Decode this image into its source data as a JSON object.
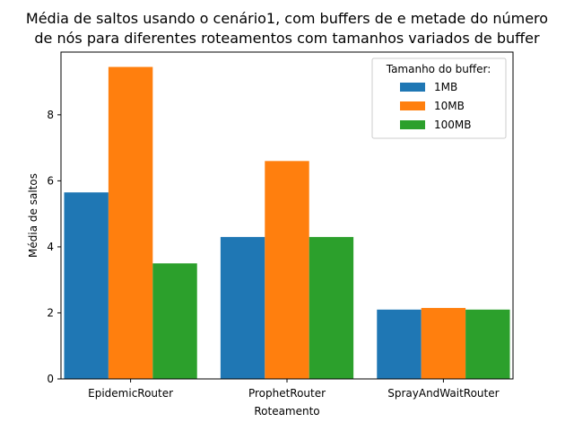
{
  "chart_data": {
    "type": "bar",
    "title_lines": [
      "Média de saltos usando o cenário1, com buffers de e metade do número",
      "de nós para diferentes roteamentos com tamanhos variados de buffer"
    ],
    "xlabel": "Roteamento",
    "ylabel": "Média de saltos",
    "categories": [
      "EpidemicRouter",
      "ProphetRouter",
      "SprayAndWaitRouter"
    ],
    "yticks": [
      0,
      2,
      4,
      6,
      8
    ],
    "ylim": [
      0,
      9.9
    ],
    "legend": {
      "title": "Tamanho do buffer:",
      "placement": "top-right"
    },
    "series": [
      {
        "name": "1MB",
        "color": "#1f77b4",
        "values": [
          5.65,
          4.3,
          2.1
        ]
      },
      {
        "name": "10MB",
        "color": "#ff7f0e",
        "values": [
          9.45,
          6.6,
          2.15
        ]
      },
      {
        "name": "100MB",
        "color": "#2ca02c",
        "values": [
          3.5,
          4.3,
          2.1
        ]
      }
    ]
  }
}
